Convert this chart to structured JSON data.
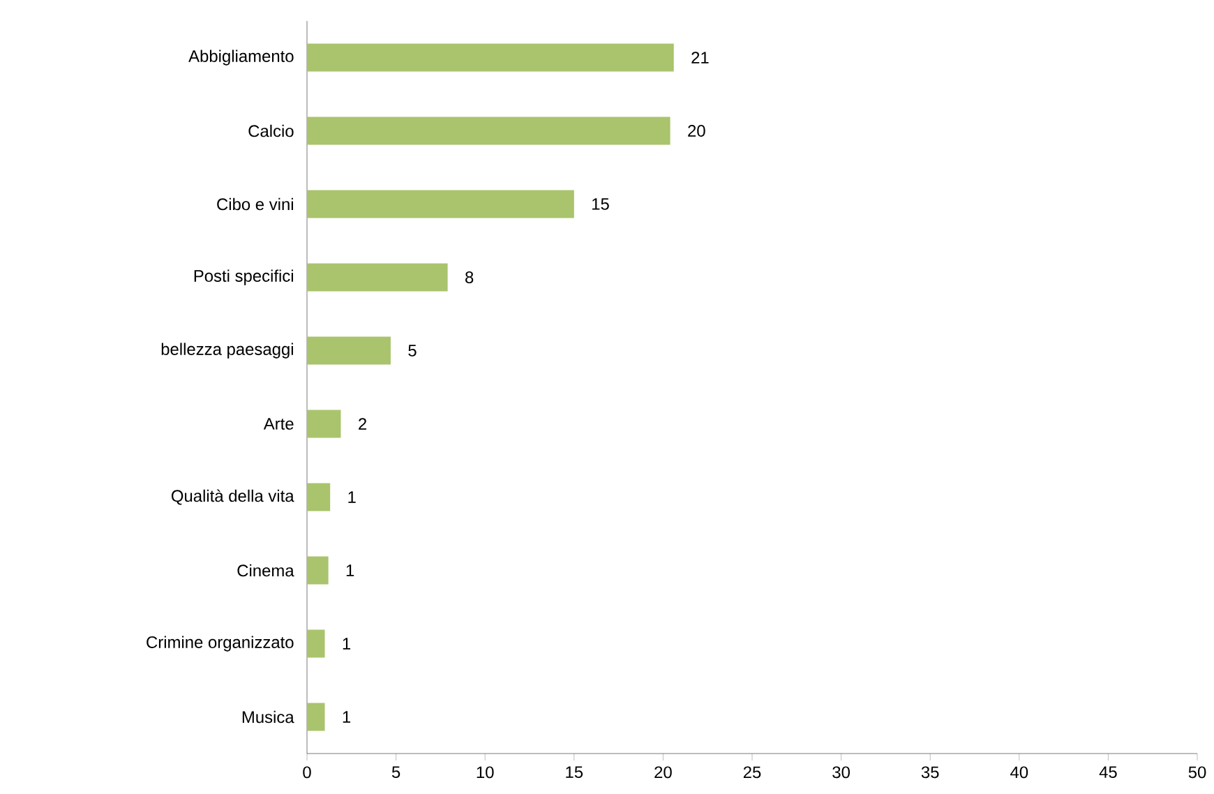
{
  "chart_data": {
    "type": "bar",
    "orientation": "horizontal",
    "categories": [
      "Abbigliamento",
      "Calcio",
      "Cibo e vini",
      "Posti specifici",
      "bellezza paesaggi",
      "Arte",
      "Qualità della vita",
      "Cinema",
      "Crimine organizzato",
      "Musica"
    ],
    "values": [
      20.6,
      20.4,
      15,
      7.9,
      4.7,
      1.9,
      1.3,
      1.2,
      1.0,
      1.0
    ],
    "value_labels": [
      "21",
      "20",
      "15",
      "8",
      "5",
      "2",
      "1",
      "1",
      "1",
      "1"
    ],
    "color": "#a9c46c",
    "xlim": [
      0,
      50
    ],
    "xticks": [
      0,
      5,
      10,
      15,
      20,
      25,
      30,
      35,
      40,
      45,
      50
    ],
    "grid": false
  }
}
